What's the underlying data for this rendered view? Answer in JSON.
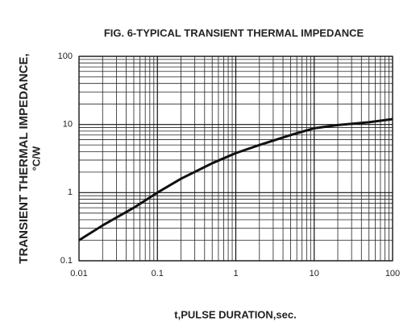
{
  "chart_data": {
    "type": "line",
    "title": "FIG. 6-TYPICAL TRANSIENT THERMAL IMPEDANCE",
    "x_label": "t,PULSE DURATION,sec.",
    "y_label": [
      "TRANSIENT THERMAL IMPEDANCE,",
      "°C/W"
    ],
    "x": [
      0.01,
      0.02,
      0.05,
      0.1,
      0.2,
      0.5,
      1,
      2,
      5,
      10,
      20,
      50,
      100
    ],
    "values": [
      0.2,
      0.33,
      0.6,
      1.0,
      1.6,
      2.7,
      3.8,
      5.0,
      7.0,
      8.8,
      9.8,
      10.8,
      12
    ],
    "color": "#111111",
    "xlim": [
      0.01,
      100
    ],
    "xticks": [
      0.01,
      0.1,
      1,
      10,
      100
    ],
    "ylim": [
      0.1,
      100
    ],
    "yticks": [
      0.1,
      1,
      10,
      100
    ],
    "xscale": "log",
    "yscale": "log",
    "grid": true,
    "minor_grid": true
  }
}
